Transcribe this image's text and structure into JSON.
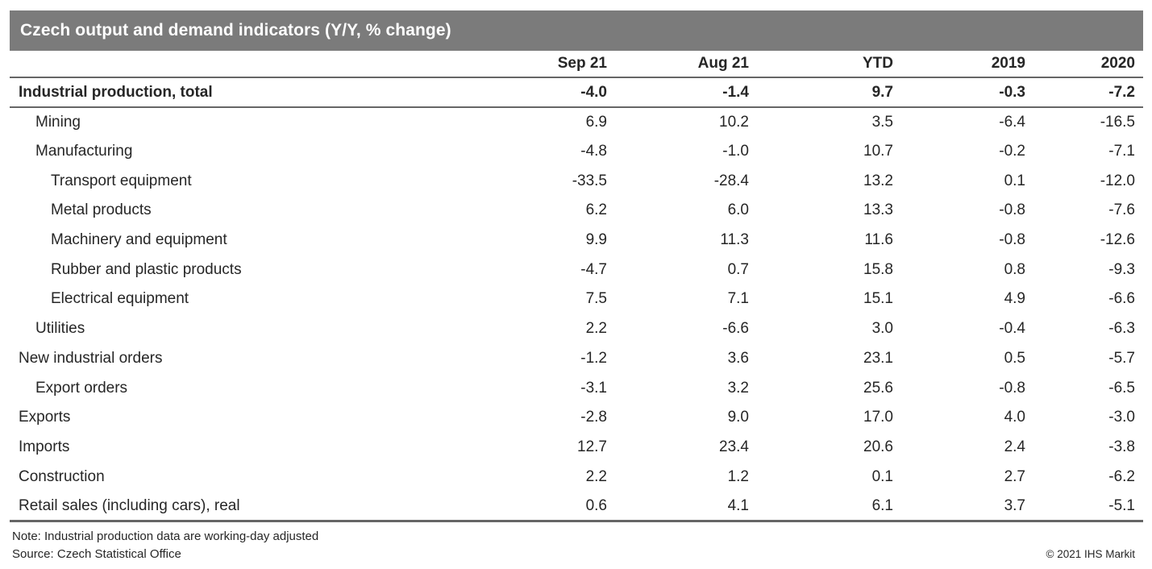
{
  "chart_data": {
    "type": "table",
    "title": "Czech output and demand indicators (Y/Y, % change)",
    "columns": [
      "Sep 21",
      "Aug 21",
      "YTD",
      "2019",
      "2020"
    ],
    "rows": [
      {
        "label": "Industrial production, total",
        "indent": 0,
        "bold": true,
        "values": [
          "-4.0",
          "-1.4",
          "9.7",
          "-0.3",
          "-7.2"
        ]
      },
      {
        "label": "Mining",
        "indent": 1,
        "bold": false,
        "values": [
          "6.9",
          "10.2",
          "3.5",
          "-6.4",
          "-16.5"
        ]
      },
      {
        "label": "Manufacturing",
        "indent": 1,
        "bold": false,
        "values": [
          "-4.8",
          "-1.0",
          "10.7",
          "-0.2",
          "-7.1"
        ]
      },
      {
        "label": "Transport equipment",
        "indent": 2,
        "bold": false,
        "values": [
          "-33.5",
          "-28.4",
          "13.2",
          "0.1",
          "-12.0"
        ]
      },
      {
        "label": "Metal products",
        "indent": 2,
        "bold": false,
        "values": [
          "6.2",
          "6.0",
          "13.3",
          "-0.8",
          "-7.6"
        ]
      },
      {
        "label": "Machinery and equipment",
        "indent": 2,
        "bold": false,
        "values": [
          "9.9",
          "11.3",
          "11.6",
          "-0.8",
          "-12.6"
        ]
      },
      {
        "label": "Rubber and plastic products",
        "indent": 2,
        "bold": false,
        "values": [
          "-4.7",
          "0.7",
          "15.8",
          "0.8",
          "-9.3"
        ]
      },
      {
        "label": "Electrical equipment",
        "indent": 2,
        "bold": false,
        "values": [
          "7.5",
          "7.1",
          "15.1",
          "4.9",
          "-6.6"
        ]
      },
      {
        "label": "Utilities",
        "indent": 1,
        "bold": false,
        "values": [
          "2.2",
          "-6.6",
          "3.0",
          "-0.4",
          "-6.3"
        ]
      },
      {
        "label": "New industrial orders",
        "indent": 0,
        "bold": false,
        "values": [
          "-1.2",
          "3.6",
          "23.1",
          "0.5",
          "-5.7"
        ]
      },
      {
        "label": "Export orders",
        "indent": 1,
        "bold": false,
        "values": [
          "-3.1",
          "3.2",
          "25.6",
          "-0.8",
          "-6.5"
        ]
      },
      {
        "label": "Exports",
        "indent": 0,
        "bold": false,
        "values": [
          "-2.8",
          "9.0",
          "17.0",
          "4.0",
          "-3.0"
        ]
      },
      {
        "label": "Imports",
        "indent": 0,
        "bold": false,
        "values": [
          "12.7",
          "23.4",
          "20.6",
          "2.4",
          "-3.8"
        ]
      },
      {
        "label": "Construction",
        "indent": 0,
        "bold": false,
        "values": [
          "2.2",
          "1.2",
          "0.1",
          "2.7",
          "-6.2"
        ]
      },
      {
        "label": "Retail sales (including cars), real",
        "indent": 0,
        "bold": false,
        "values": [
          "0.6",
          "4.1",
          "6.1",
          "3.7",
          "-5.1"
        ]
      }
    ],
    "note": "Note: Industrial production data are working-day adjusted",
    "source": "Source: Czech Statistical Office",
    "copyright": "© 2021 IHS Markit",
    "layout": {
      "legend": "none",
      "grid": "off"
    }
  },
  "colors": {
    "title_bar_bg": "#7b7b7b",
    "title_text": "#ffffff",
    "rule": "#666666",
    "text": "#262626"
  }
}
